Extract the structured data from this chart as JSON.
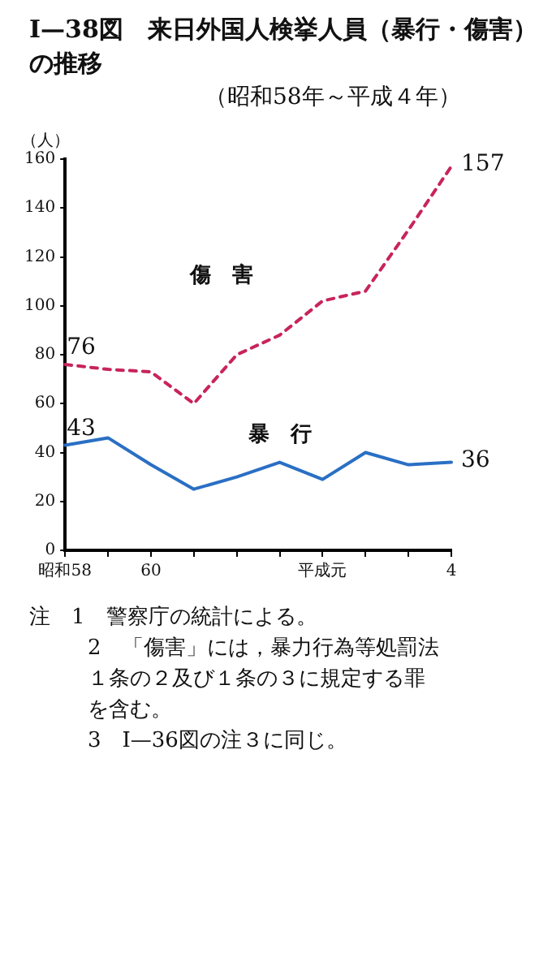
{
  "chart_data": {
    "type": "line",
    "title": "Ⅰ—38図　来日外国人検挙人員（暴行・傷害）の推移",
    "subtitle": "（昭和58年～平成４年）",
    "ylabel": "（人）",
    "categories": [
      "昭和58",
      null,
      "60",
      null,
      null,
      null,
      "平成元",
      null,
      null,
      "4"
    ],
    "series": [
      {
        "name": "傷害",
        "color": "#c8245a",
        "line_style": "dashed",
        "values": [
          76,
          74,
          73,
          60,
          80,
          88,
          102,
          106,
          131,
          157
        ],
        "value_labels": [
          "76",
          null,
          null,
          null,
          null,
          null,
          null,
          null,
          null,
          "157"
        ]
      },
      {
        "name": "暴行",
        "color": "#2a6fc4",
        "line_style": "solid",
        "values": [
          43,
          46,
          35,
          25,
          30,
          36,
          29,
          40,
          35,
          36
        ],
        "value_labels": [
          "43",
          null,
          null,
          null,
          null,
          null,
          null,
          null,
          null,
          "36"
        ]
      }
    ],
    "ylim": [
      0,
      160
    ],
    "yticks": [
      0,
      20,
      40,
      60,
      80,
      100,
      120,
      140,
      160
    ],
    "marker": "none",
    "annotations": [
      "注　1　警察庁の統計による。",
      "2　「傷害」には，暴力行為等処罰法１条の２及び１条の３に規定する罪を含む。",
      "3　Ⅰ—36図の注３に同じ。"
    ]
  }
}
